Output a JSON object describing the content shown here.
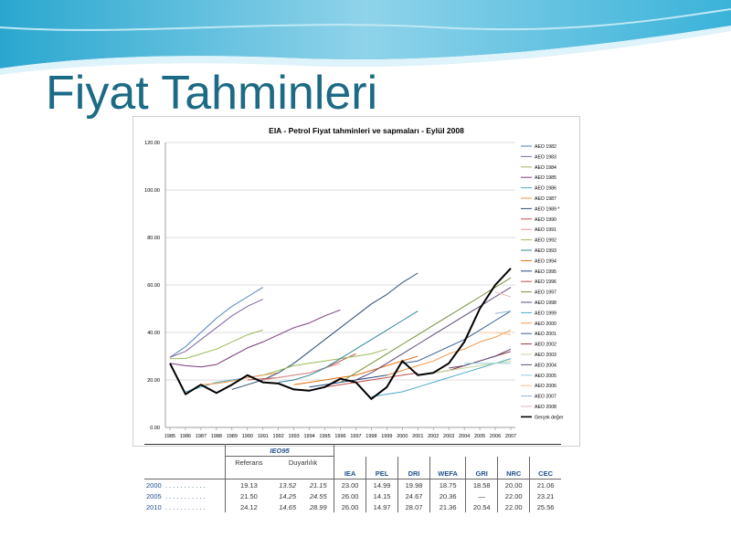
{
  "slide": {
    "title": "Fiyat Tahminleri"
  },
  "chart_data": {
    "type": "line",
    "title": "EIA - Petrol Fiyat tahminleri ve sapmaları - Eylül 2008",
    "x_categories": [
      "1985",
      "1986",
      "1987",
      "1988",
      "1989",
      "1990",
      "1991",
      "1992",
      "1993",
      "1994",
      "1995",
      "1996",
      "1997",
      "1998",
      "1999",
      "2000",
      "2001",
      "2002",
      "2003",
      "2004",
      "2005",
      "2006",
      "2007"
    ],
    "y_ticks": [
      "0.00",
      "20.00",
      "40.00",
      "60.00",
      "80.00",
      "100.00",
      "120.00"
    ],
    "ylim": [
      0,
      120
    ],
    "legend_position": "right",
    "grid": "horizontal",
    "series": [
      {
        "name": "AEO 1982",
        "color": "#4f81bd",
        "points": [
          [
            1985,
            29.5
          ],
          [
            1986,
            34
          ],
          [
            1987,
            40
          ],
          [
            1988,
            46
          ],
          [
            1989,
            51
          ],
          [
            1990,
            55
          ],
          [
            1991,
            59
          ]
        ]
      },
      {
        "name": "AEO 1983",
        "color": "#8064a2",
        "points": [
          [
            1985,
            29.5
          ],
          [
            1986,
            32
          ],
          [
            1987,
            37
          ],
          [
            1988,
            42
          ],
          [
            1989,
            47
          ],
          [
            1990,
            51
          ],
          [
            1991,
            54
          ]
        ]
      },
      {
        "name": "AEO 1984",
        "color": "#9bbb59",
        "points": [
          [
            1985,
            29
          ],
          [
            1986,
            29
          ],
          [
            1987,
            31
          ],
          [
            1988,
            33
          ],
          [
            1989,
            36
          ],
          [
            1990,
            39
          ],
          [
            1991,
            41
          ]
        ]
      },
      {
        "name": "AEO 1985",
        "color": "#7a3a7a",
        "points": [
          [
            1985,
            27
          ],
          [
            1986,
            26
          ],
          [
            1987,
            25.5
          ],
          [
            1988,
            26.5
          ],
          [
            1989,
            30
          ],
          [
            1990,
            33.5
          ],
          [
            1991,
            36
          ],
          [
            1992,
            39
          ],
          [
            1993,
            42
          ],
          [
            1994,
            44
          ],
          [
            1995,
            47
          ],
          [
            1996,
            49.5
          ]
        ]
      },
      {
        "name": "AEO 1986",
        "color": "#4bacc6",
        "points": [
          [
            1986,
            15
          ],
          [
            1987,
            17
          ],
          [
            1988,
            19
          ],
          [
            1989,
            20
          ],
          [
            1990,
            21
          ],
          [
            1991,
            22
          ]
        ]
      },
      {
        "name": "AEO 1987",
        "color": "#f79646",
        "points": [
          [
            1987,
            18
          ],
          [
            1988,
            18.5
          ],
          [
            1989,
            19.5
          ],
          [
            1990,
            21
          ],
          [
            1991,
            22
          ],
          [
            1992,
            23
          ]
        ]
      },
      {
        "name": "AEO 1989 *",
        "color": "#2c4d75",
        "points": [
          [
            1989,
            16
          ],
          [
            1990,
            18
          ],
          [
            1991,
            20
          ],
          [
            1992,
            23
          ],
          [
            1993,
            27
          ],
          [
            1994,
            32
          ],
          [
            1995,
            37
          ],
          [
            1996,
            42
          ],
          [
            1997,
            47
          ],
          [
            1998,
            52
          ],
          [
            1999,
            56
          ],
          [
            2000,
            61
          ],
          [
            2001,
            65
          ]
        ]
      },
      {
        "name": "AEO 1990",
        "color": "#b64f4b",
        "points": [
          [
            1990,
            20
          ],
          [
            1991,
            20.5
          ],
          [
            1992,
            21
          ],
          [
            1993,
            22
          ],
          [
            1994,
            23
          ],
          [
            1995,
            25
          ],
          [
            1996,
            28
          ],
          [
            1997,
            31
          ]
        ]
      },
      {
        "name": "AEO 1991",
        "color": "#d99694",
        "points": [
          [
            1991,
            20
          ],
          [
            1992,
            21
          ],
          [
            1993,
            22
          ],
          [
            1994,
            23
          ],
          [
            1995,
            25
          ],
          [
            1996,
            27
          ]
        ]
      },
      {
        "name": "AEO 1992",
        "color": "#9bbb59",
        "points": [
          [
            1991,
            22
          ],
          [
            1992,
            24
          ],
          [
            1993,
            26
          ],
          [
            1994,
            27
          ],
          [
            1995,
            28
          ],
          [
            1996,
            29
          ],
          [
            1997,
            30
          ],
          [
            1998,
            31
          ],
          [
            1999,
            33
          ]
        ]
      },
      {
        "name": "AEO 1993",
        "color": "#31859c",
        "points": [
          [
            1992,
            19
          ],
          [
            1993,
            20
          ],
          [
            1994,
            22
          ],
          [
            1995,
            25
          ],
          [
            1996,
            29
          ],
          [
            1997,
            33
          ],
          [
            1998,
            37
          ],
          [
            1999,
            41
          ],
          [
            2000,
            45
          ],
          [
            2001,
            49
          ]
        ]
      },
      {
        "name": "AEO 1994",
        "color": "#e46c0a",
        "points": [
          [
            1993,
            18
          ],
          [
            1994,
            19
          ],
          [
            1995,
            20
          ],
          [
            1996,
            21
          ],
          [
            1997,
            22
          ],
          [
            1998,
            24
          ],
          [
            1999,
            26
          ],
          [
            2000,
            28
          ],
          [
            2001,
            30
          ]
        ]
      },
      {
        "name": "AEO 1995",
        "color": "#1f497d",
        "points": [
          [
            1994,
            17
          ],
          [
            1995,
            18
          ],
          [
            1996,
            19
          ],
          [
            1997,
            20
          ],
          [
            1998,
            21
          ],
          [
            1999,
            22
          ],
          [
            2000,
            24
          ]
        ]
      },
      {
        "name": "AEO 1996",
        "color": "#c0504d",
        "points": [
          [
            1995,
            17
          ],
          [
            1996,
            18
          ],
          [
            1997,
            19
          ],
          [
            1998,
            20
          ],
          [
            1999,
            21
          ],
          [
            2000,
            22
          ],
          [
            2001,
            23
          ]
        ]
      },
      {
        "name": "AEO 1997",
        "color": "#76923c",
        "points": [
          [
            1996,
            19
          ],
          [
            1997,
            23
          ],
          [
            1998,
            27
          ],
          [
            1999,
            31
          ],
          [
            2000,
            35
          ],
          [
            2001,
            39
          ],
          [
            2002,
            43
          ],
          [
            2003,
            47
          ],
          [
            2004,
            51
          ],
          [
            2005,
            55
          ],
          [
            2006,
            59
          ],
          [
            2007,
            63
          ]
        ]
      },
      {
        "name": "AEO 1998",
        "color": "#5f497a",
        "points": [
          [
            1997,
            20
          ],
          [
            1998,
            23
          ],
          [
            1999,
            27
          ],
          [
            2000,
            31
          ],
          [
            2001,
            35
          ],
          [
            2002,
            39
          ],
          [
            2003,
            43
          ],
          [
            2004,
            47
          ],
          [
            2005,
            51
          ],
          [
            2006,
            55
          ],
          [
            2007,
            59
          ]
        ]
      },
      {
        "name": "AEO 1999",
        "color": "#4bacc6",
        "points": [
          [
            1998,
            13
          ],
          [
            1999,
            14
          ],
          [
            2000,
            15
          ],
          [
            2001,
            17
          ],
          [
            2002,
            19
          ],
          [
            2003,
            21
          ],
          [
            2004,
            23
          ],
          [
            2005,
            25
          ],
          [
            2006,
            27
          ],
          [
            2007,
            29
          ]
        ]
      },
      {
        "name": "AEO 2000",
        "color": "#f79646",
        "points": [
          [
            1999,
            22
          ],
          [
            2000,
            24
          ],
          [
            2001,
            26
          ],
          [
            2002,
            28
          ],
          [
            2003,
            31
          ],
          [
            2004,
            33
          ],
          [
            2005,
            36
          ],
          [
            2006,
            38
          ],
          [
            2007,
            41
          ]
        ]
      },
      {
        "name": "AEO 2001",
        "color": "#366092",
        "points": [
          [
            2000,
            27
          ],
          [
            2001,
            28
          ],
          [
            2002,
            31
          ],
          [
            2003,
            34
          ],
          [
            2004,
            37
          ],
          [
            2005,
            41
          ],
          [
            2006,
            45
          ],
          [
            2007,
            49
          ]
        ]
      },
      {
        "name": "AEO 2002",
        "color": "#953735",
        "points": [
          [
            2001,
            22
          ],
          [
            2002,
            23
          ],
          [
            2003,
            24
          ],
          [
            2004,
            26
          ],
          [
            2005,
            28
          ],
          [
            2006,
            30
          ],
          [
            2007,
            32
          ]
        ]
      },
      {
        "name": "AEO 2003",
        "color": "#c3d69b",
        "points": [
          [
            2002,
            23
          ],
          [
            2003,
            24
          ],
          [
            2004,
            25
          ],
          [
            2005,
            26
          ],
          [
            2006,
            27
          ],
          [
            2007,
            28
          ]
        ]
      },
      {
        "name": "AEO 2004",
        "color": "#604a7b",
        "points": [
          [
            2003,
            25
          ],
          [
            2004,
            26
          ],
          [
            2005,
            28
          ],
          [
            2006,
            30
          ],
          [
            2007,
            33
          ]
        ]
      },
      {
        "name": "AEO 2005",
        "color": "#92cddc",
        "points": [
          [
            2004,
            27
          ],
          [
            2005,
            27
          ],
          [
            2006,
            27
          ],
          [
            2007,
            27
          ]
        ]
      },
      {
        "name": "AEO 2006",
        "color": "#fac090",
        "points": [
          [
            2005,
            40
          ],
          [
            2006,
            40
          ],
          [
            2007,
            39
          ]
        ]
      },
      {
        "name": "AEO 2007",
        "color": "#95b3d7",
        "points": [
          [
            2006,
            48
          ],
          [
            2007,
            49
          ]
        ]
      },
      {
        "name": "AEO 2008",
        "color": "#e6b9b8",
        "points": [
          [
            2006,
            57
          ],
          [
            2007,
            55
          ]
        ]
      },
      {
        "name": "Gerçek değer",
        "color": "#000000",
        "width": 2,
        "points": [
          [
            1985,
            27
          ],
          [
            1986,
            14
          ],
          [
            1987,
            18
          ],
          [
            1988,
            14.5
          ],
          [
            1989,
            18
          ],
          [
            1990,
            22
          ],
          [
            1991,
            19
          ],
          [
            1992,
            18.5
          ],
          [
            1993,
            16
          ],
          [
            1994,
            15.5
          ],
          [
            1995,
            17
          ],
          [
            1996,
            20.5
          ],
          [
            1997,
            19
          ],
          [
            1998,
            12
          ],
          [
            1999,
            17
          ],
          [
            2000,
            28
          ],
          [
            2001,
            22
          ],
          [
            2002,
            23
          ],
          [
            2003,
            27
          ],
          [
            2004,
            36
          ],
          [
            2005,
            50
          ],
          [
            2006,
            60
          ],
          [
            2007,
            67
          ]
        ]
      }
    ]
  },
  "table": {
    "group_header": "IEO95",
    "sub_headers": [
      "Referans",
      "Duyarlılık"
    ],
    "columns": [
      "IEA",
      "PEL",
      "DRI",
      "WEFA",
      "GRI",
      "NRC",
      "CEC"
    ],
    "rows": [
      {
        "year": "2000",
        "dots": ". . . . . . . . . . .",
        "ref": "19.13",
        "sens_low": "13.52",
        "sens_high": "21.15",
        "vals": [
          "23.00",
          "14.99",
          "19.98",
          "18.75",
          "18.58",
          "20.00",
          "21.06"
        ]
      },
      {
        "year": "2005",
        "dots": ". . . . . . . . . . .",
        "ref": "21.50",
        "sens_low": "14.25",
        "sens_high": "24.55",
        "vals": [
          "26.00",
          "14.15",
          "24.67",
          "20.36",
          "—",
          "22.00",
          "23.21"
        ]
      },
      {
        "year": "2010",
        "dots": ". . . . . . . . . . .",
        "ref": "24.12",
        "sens_low": "14.65",
        "sens_high": "28.99",
        "vals": [
          "26.00",
          "14.97",
          "28.07",
          "21.36",
          "20.54",
          "22.00",
          "25.56"
        ]
      }
    ]
  }
}
